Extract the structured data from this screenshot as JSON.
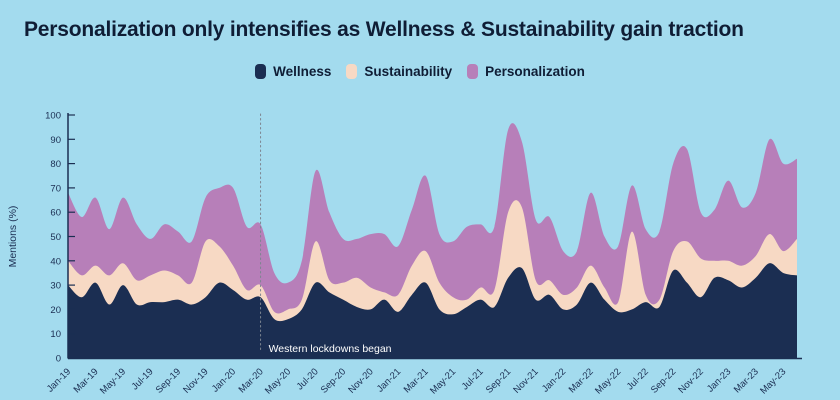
{
  "title": "Personalization only intensifies as Wellness & Sustainability gain traction",
  "legend": {
    "items": [
      {
        "label": "Wellness",
        "color": "#1b2e52"
      },
      {
        "label": "Sustainability",
        "color": "#f7d9c4"
      },
      {
        "label": "Personalization",
        "color": "#b77fb9"
      }
    ]
  },
  "annotation": {
    "text": "Western lockdowns began",
    "at_month": "Mar-20",
    "text_color": "#ffffff",
    "line_style": "dotted"
  },
  "colors": {
    "background": "#a3dbee",
    "text": "#0f1d35",
    "axis": "#1b2e52",
    "dotted_line": "#7d8590"
  },
  "chart_data": {
    "type": "area",
    "stacked": true,
    "smoothed": true,
    "title": "Personalization only intensifies as Wellness & Sustainability gain traction",
    "ylabel": "Mentions (%)",
    "xlabel": "",
    "ylim": [
      0,
      100
    ],
    "ytick_step": 10,
    "x_tick_every": 2,
    "grid": false,
    "legend_position": "top",
    "x": [
      "Jan-19",
      "Feb-19",
      "Mar-19",
      "Apr-19",
      "May-19",
      "Jun-19",
      "Jul-19",
      "Aug-19",
      "Sep-19",
      "Oct-19",
      "Nov-19",
      "Dec-19",
      "Jan-20",
      "Feb-20",
      "Mar-20",
      "Apr-20",
      "May-20",
      "Jun-20",
      "Jul-20",
      "Aug-20",
      "Sep-20",
      "Oct-20",
      "Nov-20",
      "Dec-20",
      "Jan-21",
      "Feb-21",
      "Mar-21",
      "Apr-21",
      "May-21",
      "Jun-21",
      "Jul-21",
      "Aug-21",
      "Sep-21",
      "Oct-21",
      "Nov-21",
      "Dec-21",
      "Jan-22",
      "Feb-22",
      "Mar-22",
      "Apr-22",
      "May-22",
      "Jun-22",
      "Jul-22",
      "Aug-22",
      "Sep-22",
      "Oct-22",
      "Nov-22",
      "Dec-22",
      "Jan-23",
      "Feb-23",
      "Mar-23",
      "Apr-23",
      "May-23",
      "Jun-23"
    ],
    "series": [
      {
        "name": "Wellness",
        "color": "#1b2e52",
        "values": [
          30,
          25,
          31,
          22,
          30,
          22,
          23,
          23,
          24,
          22,
          25,
          31,
          28,
          24,
          25,
          16,
          16,
          20,
          31,
          27,
          24,
          21,
          20,
          24,
          19,
          26,
          31,
          20,
          18,
          21,
          24,
          21,
          33,
          37,
          24,
          26,
          20,
          22,
          31,
          24,
          19,
          20,
          23,
          21,
          36,
          31,
          25,
          33,
          32,
          29,
          33,
          39,
          35,
          34
        ]
      },
      {
        "name": "Sustainability",
        "color": "#f7d9c4",
        "values": [
          10,
          9,
          7,
          12,
          9,
          10,
          11,
          13,
          10,
          9,
          23,
          15,
          10,
          4,
          5,
          3,
          4,
          4,
          17,
          5,
          7,
          12,
          9,
          3,
          7,
          12,
          13,
          11,
          7,
          3,
          5,
          7,
          27,
          25,
          8,
          6,
          6,
          7,
          7,
          5,
          4,
          32,
          3,
          3,
          8,
          17,
          16,
          7,
          8,
          9,
          9,
          12,
          9,
          15
        ]
      },
      {
        "name": "Personalization",
        "color": "#b77fb9",
        "values": [
          28,
          24,
          28,
          19,
          27,
          23,
          15,
          19,
          18,
          17,
          18,
          24,
          32,
          26,
          25,
          16,
          11,
          16,
          29,
          28,
          18,
          16,
          22,
          24,
          20,
          23,
          31,
          20,
          23,
          30,
          26,
          26,
          34,
          27,
          25,
          26,
          18,
          15,
          30,
          21,
          23,
          19,
          27,
          28,
          36,
          38,
          19,
          21,
          33,
          24,
          26,
          39,
          36,
          33
        ]
      }
    ]
  }
}
